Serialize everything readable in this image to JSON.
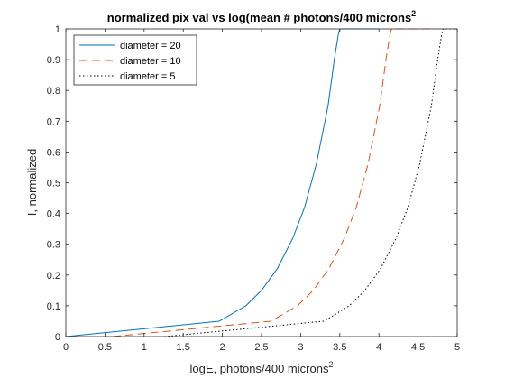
{
  "chart_data": {
    "type": "line",
    "title": "normalized pix val vs log(mean # photons/400 microns",
    "title_superscript": "2",
    "xlabel": "logE, photons/400 microns",
    "xlabel_superscript": "2",
    "ylabel": "I, normalized",
    "xlim": [
      0,
      5
    ],
    "ylim": [
      0,
      1
    ],
    "xticks": [
      "0",
      "0.5",
      "1",
      "1.5",
      "2",
      "2.5",
      "3",
      "3.5",
      "4",
      "4.5",
      "5"
    ],
    "yticks": [
      "0",
      "0.1",
      "0.2",
      "0.3",
      "0.4",
      "0.5",
      "0.6",
      "0.7",
      "0.8",
      "0.9",
      "1"
    ],
    "grid": false,
    "legend_position": "top-left",
    "series": [
      {
        "name": "diameter = 20",
        "color": "#0072BD",
        "style": "solid",
        "x": [
          0,
          1.96,
          2.3,
          2.5,
          2.7,
          2.9,
          3.05,
          3.2,
          3.35,
          3.43,
          3.48,
          3.5,
          4.0
        ],
        "y": [
          0,
          0.05,
          0.1,
          0.15,
          0.22,
          0.32,
          0.42,
          0.56,
          0.75,
          0.9,
          0.98,
          1.0,
          1.0
        ]
      },
      {
        "name": "diameter = 10",
        "color": "#D95319",
        "style": "dashed",
        "x": [
          0.6,
          2.62,
          2.96,
          3.16,
          3.36,
          3.56,
          3.71,
          3.86,
          4.01,
          4.09,
          4.14,
          4.16,
          4.66
        ],
        "y": [
          0,
          0.05,
          0.1,
          0.15,
          0.22,
          0.32,
          0.42,
          0.56,
          0.75,
          0.9,
          0.98,
          1.0,
          1.0
        ]
      },
      {
        "name": "diameter = 5",
        "color": "#000000",
        "style": "dotted",
        "x": [
          1.26,
          3.3,
          3.62,
          3.82,
          4.02,
          4.22,
          4.37,
          4.52,
          4.67,
          4.75,
          4.8,
          4.82,
          5.0
        ],
        "y": [
          0,
          0.05,
          0.1,
          0.15,
          0.22,
          0.32,
          0.42,
          0.56,
          0.75,
          0.9,
          0.98,
          1.0,
          1.0
        ]
      }
    ]
  }
}
